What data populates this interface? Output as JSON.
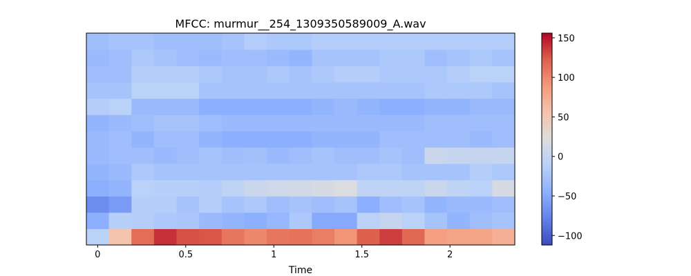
{
  "chart_data": {
    "type": "heatmap",
    "title": "MFCC: murmur__254_1309350589009_A.wav",
    "xlabel": "Time",
    "ylabel": "",
    "x_ticks": [
      "0",
      "0.5",
      "1",
      "1.5",
      "2"
    ],
    "x_tick_values": [
      0,
      0.5,
      1,
      1.5,
      2
    ],
    "xlim": [
      -0.064,
      2.368
    ],
    "colorbar": {
      "colormap": "coolwarm",
      "vmin": -112,
      "vmax": 156,
      "ticks": [
        "150",
        "100",
        "50",
        "0",
        "−50",
        "−100"
      ],
      "tick_values": [
        150,
        100,
        50,
        0,
        -50,
        -100
      ]
    },
    "n_coefficients": 13,
    "n_frames": 19,
    "matrix": [
      [
        -10,
        55,
        115,
        140,
        128,
        126,
        110,
        100,
        110,
        112,
        105,
        92,
        122,
        135,
        118,
        85,
        80,
        80,
        72
      ],
      [
        -45,
        -12,
        -15,
        -20,
        -22,
        -35,
        -40,
        -45,
        -38,
        -20,
        -50,
        -50,
        -10,
        0,
        -10,
        -25,
        -40,
        -30,
        -25
      ],
      [
        -70,
        -60,
        -15,
        -15,
        -25,
        -15,
        -25,
        -20,
        -30,
        -25,
        -30,
        -25,
        -45,
        -30,
        -25,
        -40,
        -35,
        -35,
        -30
      ],
      [
        -45,
        -40,
        -10,
        -12,
        -12,
        -15,
        -5,
        5,
        8,
        10,
        15,
        20,
        -5,
        -5,
        -5,
        5,
        -5,
        -10,
        15
      ],
      [
        -40,
        -35,
        -20,
        -25,
        -25,
        -25,
        -25,
        -25,
        -25,
        -25,
        -25,
        -25,
        -20,
        -20,
        -25,
        -25,
        -25,
        -15,
        -20
      ],
      [
        -35,
        -30,
        -30,
        -35,
        -30,
        -25,
        -30,
        -28,
        -35,
        -30,
        -25,
        -30,
        -30,
        -25,
        -30,
        5,
        0,
        0,
        0
      ],
      [
        -35,
        -30,
        -40,
        -30,
        -30,
        -40,
        -45,
        -45,
        -45,
        -45,
        -40,
        -40,
        -40,
        -30,
        -30,
        -30,
        -30,
        -35,
        -30
      ],
      [
        -40,
        -35,
        -30,
        -25,
        -25,
        -30,
        -35,
        -35,
        -35,
        -35,
        -35,
        -35,
        -35,
        -35,
        -35,
        -30,
        -30,
        -30,
        -30
      ],
      [
        -15,
        -10,
        -35,
        -35,
        -35,
        -45,
        -45,
        -45,
        -45,
        -45,
        -40,
        -35,
        -40,
        -45,
        -45,
        -40,
        -40,
        -35,
        -35
      ],
      [
        -25,
        -25,
        -10,
        -10,
        -10,
        -25,
        -25,
        -25,
        -25,
        -25,
        -25,
        -25,
        -25,
        -25,
        -25,
        -20,
        -20,
        -20,
        -25
      ],
      [
        -30,
        -30,
        -15,
        -15,
        -15,
        -20,
        -25,
        -25,
        -20,
        -25,
        -20,
        -15,
        -15,
        -20,
        -20,
        -20,
        -15,
        -10,
        -10
      ],
      [
        -35,
        -30,
        -20,
        -25,
        -30,
        -35,
        -30,
        -30,
        -35,
        -40,
        -25,
        -25,
        -25,
        -20,
        -20,
        -30,
        -25,
        -20,
        -25
      ],
      [
        -30,
        -25,
        -25,
        -30,
        -30,
        -30,
        -25,
        -15,
        -20,
        -20,
        -15,
        -15,
        -15,
        -15,
        -15,
        -15,
        -15,
        -15,
        -15
      ]
    ]
  }
}
